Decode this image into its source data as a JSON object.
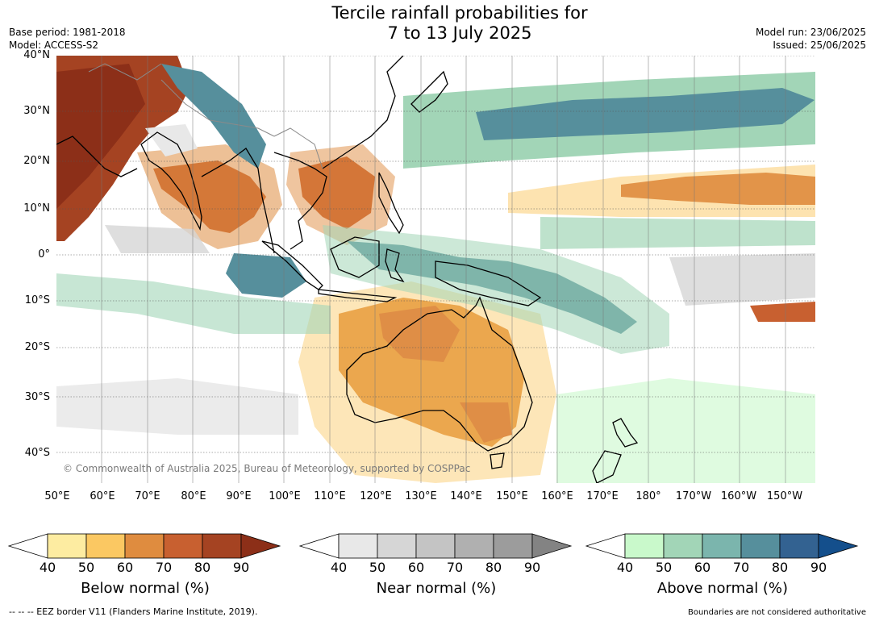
{
  "header": {
    "title_line1": "Tercile rainfall probabilities for",
    "title_line2": "7 to 13 July 2025",
    "base_period": "Base period: 1981-2018",
    "model": "Model: ACCESS-S2",
    "model_run": "Model run: 23/06/2025",
    "issued": "Issued: 25/06/2025"
  },
  "map": {
    "copyright": "© Commonwealth of Australia 2025, Bureau of Meteorology, supported by COSPPac",
    "lat_labels": [
      "40°N",
      "30°N",
      "20°N",
      "10°N",
      "0°",
      "10°S",
      "20°S",
      "30°S",
      "40°S"
    ],
    "lon_labels": [
      "50°E",
      "60°E",
      "70°E",
      "80°E",
      "90°E",
      "100°E",
      "110°E",
      "120°E",
      "130°E",
      "140°E",
      "150°E",
      "160°E",
      "170°E",
      "180°",
      "170°W",
      "160°W",
      "150°W"
    ]
  },
  "legends": [
    {
      "name": "below",
      "title": "Below normal (%)",
      "ticks": [
        "40",
        "50",
        "60",
        "70",
        "80",
        "90"
      ],
      "colors": [
        "#ffffff",
        "#fdeca1",
        "#fbc862",
        "#df8c3f",
        "#c86030",
        "#a54322",
        "#8c2f18"
      ]
    },
    {
      "name": "near",
      "title": "Near normal (%)",
      "ticks": [
        "40",
        "50",
        "60",
        "70",
        "80",
        "90"
      ],
      "colors": [
        "#ffffff",
        "#e8e8e8",
        "#d6d6d6",
        "#c4c4c4",
        "#b0b0b0",
        "#9c9c9c",
        "#838383"
      ]
    },
    {
      "name": "above",
      "title": "Above normal (%)",
      "ticks": [
        "40",
        "50",
        "60",
        "70",
        "80",
        "90"
      ],
      "colors": [
        "#ffffff",
        "#c9f9cb",
        "#a2d5b7",
        "#7bb5ad",
        "#568f9c",
        "#336291",
        "#144f8c"
      ]
    }
  ],
  "footer": {
    "eez": "--  --  -- EEZ border V11 (Flanders Marine Institute, 2019).",
    "boundaries": "Boundaries are not considered authoritative"
  }
}
